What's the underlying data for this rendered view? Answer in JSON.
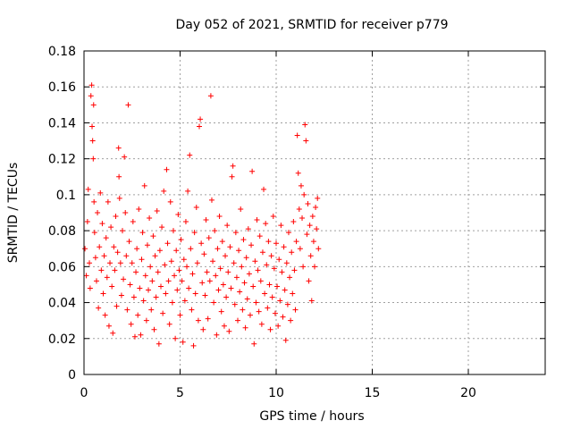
{
  "chart_data": {
    "type": "scatter",
    "title": "Day 052 of 2021, SRMTID for receiver p779",
    "xlabel": "GPS time / hours",
    "ylabel": "SRMTID / TECUs",
    "xlim": [
      0,
      24
    ],
    "ylim": [
      0,
      0.18
    ],
    "x_ticks": [
      0,
      5,
      10,
      15,
      20
    ],
    "x_tick_labels": [
      "0",
      "5",
      "10",
      "15",
      "20"
    ],
    "y_ticks": [
      0,
      0.02,
      0.04,
      0.06,
      0.08,
      0.1,
      0.12,
      0.14,
      0.16,
      0.18
    ],
    "y_tick_labels": [
      "0",
      "0.02",
      "0.04",
      "0.06",
      "0.08",
      "0.1",
      "0.12",
      "0.14",
      "0.16",
      "0.18"
    ],
    "grid": true,
    "marker": "plus",
    "color": "#ff0000",
    "series": [
      {
        "name": "SRMTID",
        "points": [
          [
            0.05,
            0.07
          ],
          [
            0.12,
            0.055
          ],
          [
            0.18,
            0.085
          ],
          [
            0.22,
            0.103
          ],
          [
            0.28,
            0.062
          ],
          [
            0.32,
            0.048
          ],
          [
            0.36,
            0.155
          ],
          [
            0.4,
            0.161
          ],
          [
            0.42,
            0.138
          ],
          [
            0.45,
            0.13
          ],
          [
            0.48,
            0.12
          ],
          [
            0.5,
            0.15
          ],
          [
            0.52,
            0.096
          ],
          [
            0.55,
            0.079
          ],
          [
            0.6,
            0.065
          ],
          [
            0.65,
            0.052
          ],
          [
            0.7,
            0.09
          ],
          [
            0.75,
            0.037
          ],
          [
            0.8,
            0.071
          ],
          [
            0.85,
            0.101
          ],
          [
            0.9,
            0.058
          ],
          [
            0.95,
            0.084
          ],
          [
            1.0,
            0.045
          ],
          [
            1.05,
            0.066
          ],
          [
            1.1,
            0.033
          ],
          [
            1.15,
            0.076
          ],
          [
            1.2,
            0.054
          ],
          [
            1.25,
            0.096
          ],
          [
            1.3,
            0.027
          ],
          [
            1.35,
            0.062
          ],
          [
            1.4,
            0.082
          ],
          [
            1.45,
            0.049
          ],
          [
            1.5,
            0.023
          ],
          [
            1.55,
            0.071
          ],
          [
            1.6,
            0.058
          ],
          [
            1.65,
            0.088
          ],
          [
            1.7,
            0.038
          ],
          [
            1.75,
            0.068
          ],
          [
            1.8,
            0.126
          ],
          [
            1.82,
            0.11
          ],
          [
            1.85,
            0.098
          ],
          [
            1.9,
            0.062
          ],
          [
            1.95,
            0.044
          ],
          [
            2.0,
            0.08
          ],
          [
            2.05,
            0.053
          ],
          [
            2.1,
            0.121
          ],
          [
            2.15,
            0.09
          ],
          [
            2.2,
            0.066
          ],
          [
            2.25,
            0.036
          ],
          [
            2.3,
            0.15
          ],
          [
            2.35,
            0.074
          ],
          [
            2.4,
            0.05
          ],
          [
            2.45,
            0.028
          ],
          [
            2.5,
            0.062
          ],
          [
            2.55,
            0.085
          ],
          [
            2.6,
            0.043
          ],
          [
            2.65,
            0.021
          ],
          [
            2.7,
            0.057
          ],
          [
            2.75,
            0.07
          ],
          [
            2.8,
            0.033
          ],
          [
            2.85,
            0.092
          ],
          [
            2.9,
            0.048
          ],
          [
            2.95,
            0.022
          ],
          [
            3.0,
            0.064
          ],
          [
            3.05,
            0.079
          ],
          [
            3.1,
            0.041
          ],
          [
            3.15,
            0.105
          ],
          [
            3.2,
            0.055
          ],
          [
            3.25,
            0.03
          ],
          [
            3.3,
            0.072
          ],
          [
            3.35,
            0.047
          ],
          [
            3.4,
            0.087
          ],
          [
            3.45,
            0.06
          ],
          [
            3.5,
            0.036
          ],
          [
            3.55,
            0.052
          ],
          [
            3.6,
            0.077
          ],
          [
            3.65,
            0.025
          ],
          [
            3.7,
            0.066
          ],
          [
            3.75,
            0.043
          ],
          [
            3.8,
            0.091
          ],
          [
            3.85,
            0.057
          ],
          [
            3.9,
            0.017
          ],
          [
            3.95,
            0.069
          ],
          [
            4.0,
            0.049
          ],
          [
            4.05,
            0.082
          ],
          [
            4.1,
            0.034
          ],
          [
            4.15,
            0.102
          ],
          [
            4.2,
            0.061
          ],
          [
            4.25,
            0.045
          ],
          [
            4.3,
            0.114
          ],
          [
            4.35,
            0.073
          ],
          [
            4.4,
            0.052
          ],
          [
            4.45,
            0.028
          ],
          [
            4.5,
            0.096
          ],
          [
            4.55,
            0.063
          ],
          [
            4.6,
            0.04
          ],
          [
            4.65,
            0.08
          ],
          [
            4.7,
            0.055
          ],
          [
            4.75,
            0.02
          ],
          [
            4.8,
            0.069
          ],
          [
            4.85,
            0.047
          ],
          [
            4.9,
            0.089
          ],
          [
            4.95,
            0.058
          ],
          [
            5.0,
            0.033
          ],
          [
            5.05,
            0.075
          ],
          [
            5.1,
            0.052
          ],
          [
            5.15,
            0.018
          ],
          [
            5.2,
            0.064
          ],
          [
            5.25,
            0.041
          ],
          [
            5.3,
            0.085
          ],
          [
            5.35,
            0.06
          ],
          [
            5.4,
            0.102
          ],
          [
            5.45,
            0.048
          ],
          [
            5.5,
            0.122
          ],
          [
            5.55,
            0.07
          ],
          [
            5.6,
            0.036
          ],
          [
            5.65,
            0.056
          ],
          [
            5.7,
            0.016
          ],
          [
            5.75,
            0.079
          ],
          [
            5.8,
            0.045
          ],
          [
            5.85,
            0.093
          ],
          [
            5.9,
            0.062
          ],
          [
            5.95,
            0.03
          ],
          [
            6.0,
            0.138
          ],
          [
            6.05,
            0.142
          ],
          [
            6.1,
            0.073
          ],
          [
            6.15,
            0.051
          ],
          [
            6.2,
            0.025
          ],
          [
            6.25,
            0.067
          ],
          [
            6.3,
            0.044
          ],
          [
            6.35,
            0.086
          ],
          [
            6.4,
            0.057
          ],
          [
            6.45,
            0.031
          ],
          [
            6.5,
            0.076
          ],
          [
            6.55,
            0.052
          ],
          [
            6.6,
            0.155
          ],
          [
            6.65,
            0.097
          ],
          [
            6.7,
            0.063
          ],
          [
            6.75,
            0.04
          ],
          [
            6.8,
            0.08
          ],
          [
            6.85,
            0.055
          ],
          [
            6.9,
            0.022
          ],
          [
            6.95,
            0.07
          ],
          [
            7.0,
            0.047
          ],
          [
            7.05,
            0.088
          ],
          [
            7.1,
            0.059
          ],
          [
            7.15,
            0.035
          ],
          [
            7.2,
            0.074
          ],
          [
            7.25,
            0.05
          ],
          [
            7.3,
            0.027
          ],
          [
            7.35,
            0.066
          ],
          [
            7.4,
            0.043
          ],
          [
            7.45,
            0.083
          ],
          [
            7.5,
            0.057
          ],
          [
            7.55,
            0.024
          ],
          [
            7.6,
            0.071
          ],
          [
            7.65,
            0.048
          ],
          [
            7.7,
            0.11
          ],
          [
            7.75,
            0.116
          ],
          [
            7.8,
            0.062
          ],
          [
            7.85,
            0.039
          ],
          [
            7.9,
            0.079
          ],
          [
            7.95,
            0.054
          ],
          [
            8.0,
            0.03
          ],
          [
            8.05,
            0.069
          ],
          [
            8.1,
            0.046
          ],
          [
            8.15,
            0.092
          ],
          [
            8.2,
            0.06
          ],
          [
            8.25,
            0.036
          ],
          [
            8.3,
            0.075
          ],
          [
            8.35,
            0.051
          ],
          [
            8.4,
            0.026
          ],
          [
            8.45,
            0.065
          ],
          [
            8.5,
            0.042
          ],
          [
            8.55,
            0.081
          ],
          [
            8.6,
            0.056
          ],
          [
            8.65,
            0.033
          ],
          [
            8.7,
            0.072
          ],
          [
            8.75,
            0.113
          ],
          [
            8.8,
            0.049
          ],
          [
            8.85,
            0.017
          ],
          [
            8.9,
            0.063
          ],
          [
            8.95,
            0.04
          ],
          [
            9.0,
            0.086
          ],
          [
            9.05,
            0.058
          ],
          [
            9.1,
            0.035
          ],
          [
            9.15,
            0.077
          ],
          [
            9.2,
            0.052
          ],
          [
            9.25,
            0.028
          ],
          [
            9.3,
            0.068
          ],
          [
            9.35,
            0.103
          ],
          [
            9.4,
            0.045
          ],
          [
            9.45,
            0.084
          ],
          [
            9.5,
            0.061
          ],
          [
            9.55,
            0.037
          ],
          [
            9.6,
            0.074
          ],
          [
            9.65,
            0.05
          ],
          [
            9.7,
            0.025
          ],
          [
            9.75,
            0.066
          ],
          [
            9.8,
            0.043
          ],
          [
            9.85,
            0.088
          ],
          [
            9.9,
            0.059
          ],
          [
            9.95,
            0.034
          ],
          [
            10.0,
            0.073
          ],
          [
            10.05,
            0.049
          ],
          [
            10.1,
            0.027
          ],
          [
            10.15,
            0.064
          ],
          [
            10.2,
            0.041
          ],
          [
            10.25,
            0.083
          ],
          [
            10.3,
            0.057
          ],
          [
            10.35,
            0.032
          ],
          [
            10.4,
            0.071
          ],
          [
            10.45,
            0.047
          ],
          [
            10.5,
            0.019
          ],
          [
            10.55,
            0.062
          ],
          [
            10.6,
            0.039
          ],
          [
            10.65,
            0.079
          ],
          [
            10.7,
            0.054
          ],
          [
            10.75,
            0.03
          ],
          [
            10.8,
            0.068
          ],
          [
            10.85,
            0.045
          ],
          [
            10.9,
            0.085
          ],
          [
            10.95,
            0.058
          ],
          [
            11.0,
            0.036
          ],
          [
            11.05,
            0.074
          ],
          [
            11.1,
            0.133
          ],
          [
            11.15,
            0.112
          ],
          [
            11.2,
            0.092
          ],
          [
            11.25,
            0.07
          ],
          [
            11.3,
            0.105
          ],
          [
            11.35,
            0.087
          ],
          [
            11.4,
            0.06
          ],
          [
            11.45,
            0.1
          ],
          [
            11.5,
            0.139
          ],
          [
            11.55,
            0.13
          ],
          [
            11.6,
            0.078
          ],
          [
            11.65,
            0.095
          ],
          [
            11.7,
            0.052
          ],
          [
            11.75,
            0.083
          ],
          [
            11.8,
            0.066
          ],
          [
            11.85,
            0.041
          ],
          [
            11.9,
            0.088
          ],
          [
            11.95,
            0.074
          ],
          [
            12.0,
            0.06
          ],
          [
            12.05,
            0.093
          ],
          [
            12.1,
            0.081
          ],
          [
            12.15,
            0.098
          ],
          [
            12.2,
            0.07
          ]
        ]
      }
    ]
  }
}
